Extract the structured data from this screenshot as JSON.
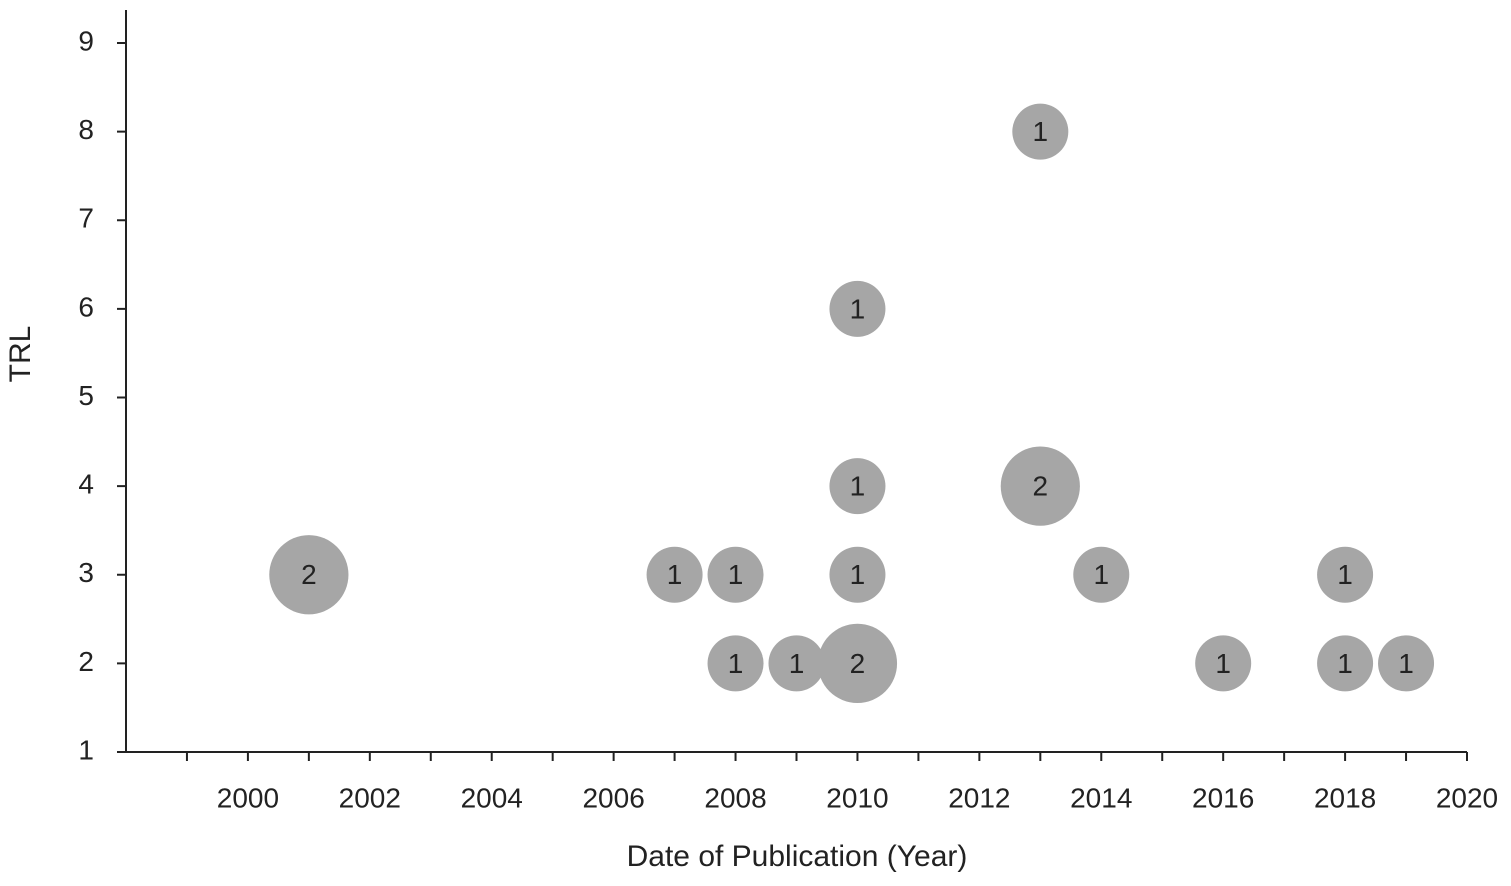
{
  "chart_data": {
    "type": "bubble",
    "xlabel": "Date of Publication (Year)",
    "ylabel": "TRL",
    "color": "#a6a6a6",
    "xlim": [
      1998,
      2020
    ],
    "xticks": [
      2000,
      2002,
      2004,
      2006,
      2008,
      2010,
      2012,
      2014,
      2016,
      2018,
      2020
    ],
    "xminor_ticks": [
      1999,
      2001,
      2003,
      2005,
      2007,
      2009,
      2011,
      2013,
      2015,
      2017,
      2019
    ],
    "ylim": [
      1,
      9
    ],
    "yticks": [
      1,
      2,
      3,
      4,
      5,
      6,
      7,
      8,
      9
    ],
    "x": [
      2001,
      2007,
      2008,
      2010,
      2014,
      2018,
      2008,
      2009,
      2010,
      2016,
      2018,
      2019,
      2010,
      2013,
      2010,
      2013
    ],
    "y": [
      3,
      3,
      3,
      3,
      3,
      3,
      2,
      2,
      2,
      2,
      2,
      2,
      4,
      4,
      6,
      8
    ],
    "sizes": [
      2,
      1,
      1,
      1,
      1,
      1,
      1,
      1,
      2,
      1,
      1,
      1,
      1,
      2,
      1,
      1
    ]
  }
}
